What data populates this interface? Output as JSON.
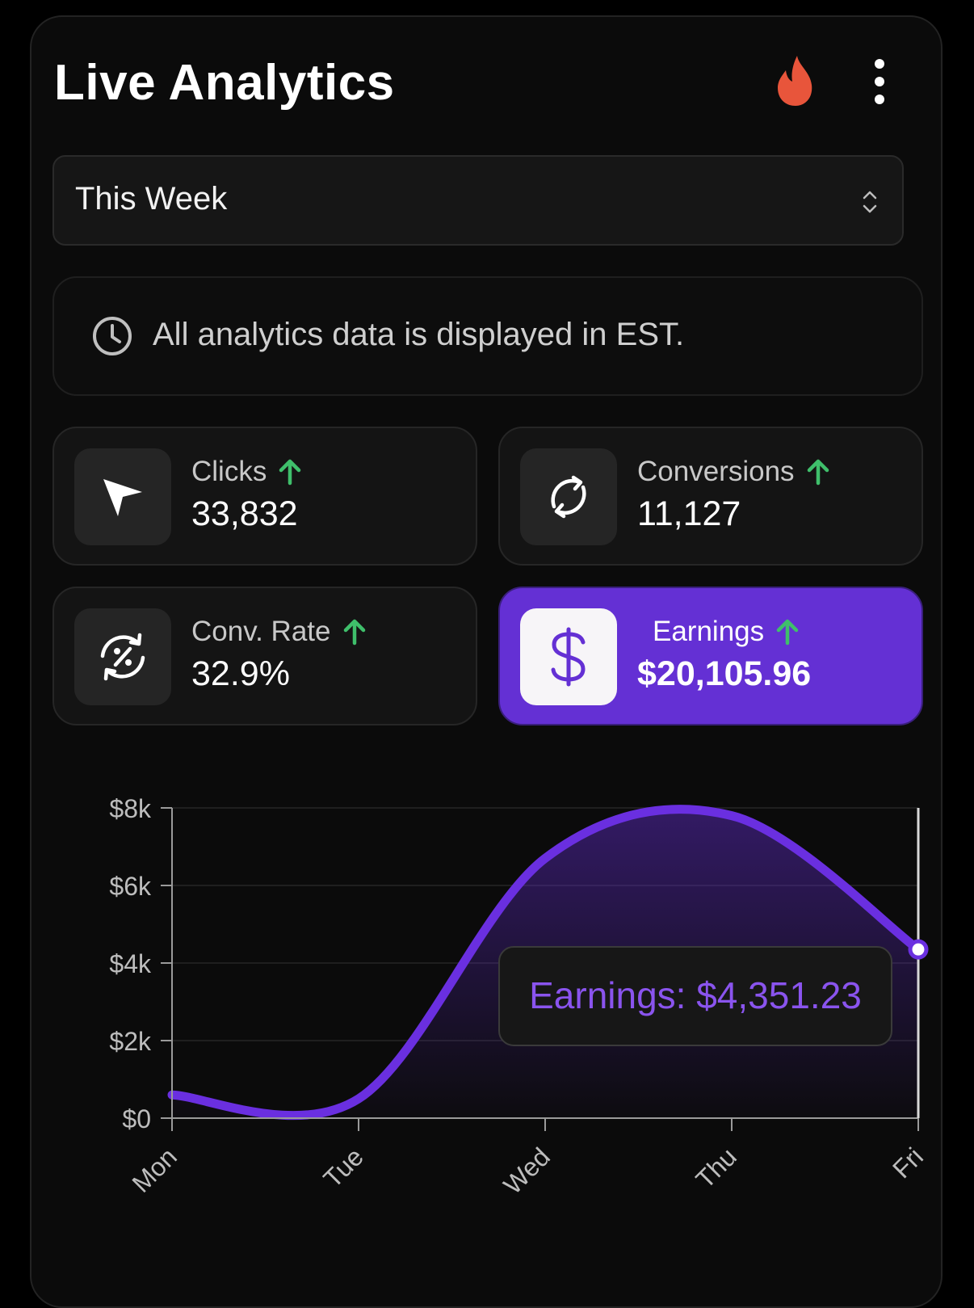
{
  "header": {
    "title": "Live Analytics"
  },
  "range_select": {
    "value": "This Week"
  },
  "notice": {
    "text": "All analytics data is displayed in EST."
  },
  "metrics": [
    {
      "label": "Clicks",
      "value": "33,832",
      "trend": "up",
      "icon": "cursor-icon"
    },
    {
      "label": "Conversions",
      "value": "11,127",
      "trend": "up",
      "icon": "refresh-icon"
    },
    {
      "label": "Conv. Rate",
      "value": "32.9%",
      "trend": "up",
      "icon": "percent-cycle-icon"
    },
    {
      "label": "Earnings",
      "value": "$20,105.96",
      "trend": "up",
      "icon": "dollar-icon"
    }
  ],
  "colors": {
    "accent": "#6430d4",
    "line": "#6a2fe0",
    "trend_up": "#3fbf6b",
    "flame": "#e8553b"
  },
  "chart_data": {
    "type": "area",
    "categories": [
      "Mon",
      "Tue",
      "Wed",
      "Thu",
      "Fri"
    ],
    "series": [
      {
        "values": [
          600,
          500,
          6700,
          7800,
          4351.23
        ]
      }
    ],
    "ylim": [
      0,
      8000
    ],
    "yticks": [
      "$0",
      "$2k",
      "$4k",
      "$6k",
      "$8k"
    ],
    "grid": true,
    "tooltip": {
      "category": "Fri",
      "text": "Earnings: $4,351.23"
    }
  }
}
